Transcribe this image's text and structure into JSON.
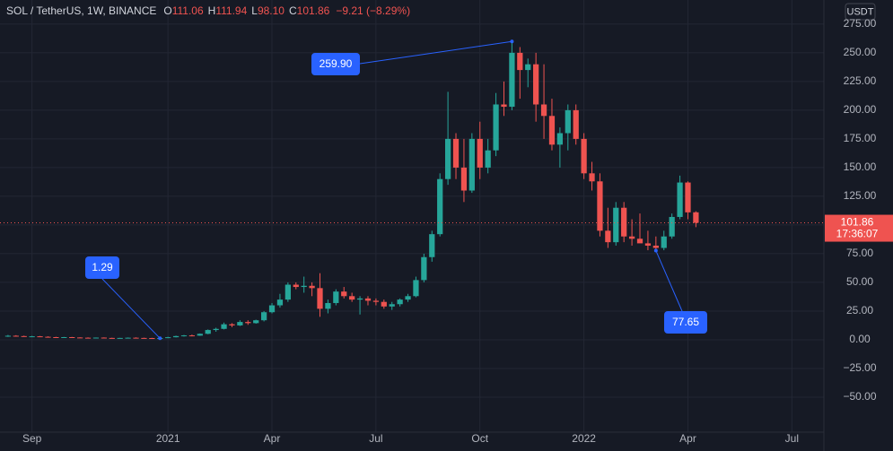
{
  "chart_data": {
    "type": "candlestick",
    "header": {
      "title": "SOL / TetherUS, 1W, BINANCE",
      "items": [
        {
          "label": "O",
          "value": "111.06"
        },
        {
          "label": "H",
          "value": "111.94"
        },
        {
          "label": "L",
          "value": "98.10"
        },
        {
          "label": "C",
          "value": "101.86"
        }
      ],
      "change": "−9.21 (−8.29%)"
    },
    "currency": "USDT",
    "up_color": "#26a69a",
    "down_color": "#ef5350",
    "grid": true,
    "open": [
      3.0,
      3.5,
      3.2,
      2.8,
      3.0,
      2.6,
      2.3,
      2.1,
      2.3,
      2.0,
      1.8,
      1.7,
      1.9,
      1.6,
      1.5,
      1.6,
      1.8,
      1.6,
      1.5,
      1.45,
      1.5,
      2.2,
      3.2,
      3.8,
      3.6,
      5.2,
      8.5,
      9.5,
      13.5,
      12.5,
      15.5,
      14.5,
      17,
      24,
      30,
      35,
      48,
      46,
      47,
      45,
      27,
      32,
      42,
      38,
      35,
      36,
      34,
      33,
      29,
      31,
      35,
      38,
      52,
      72,
      92,
      140,
      175,
      150,
      130,
      175,
      150,
      165,
      205,
      203,
      250,
      235,
      240,
      205,
      195,
      170,
      180,
      200,
      175,
      145,
      138,
      95,
      85,
      115,
      90,
      88,
      84,
      82,
      80,
      90,
      107,
      137,
      111.06
    ],
    "high": [
      4.2,
      4.0,
      3.6,
      3.4,
      3.3,
      3.0,
      2.6,
      2.5,
      2.5,
      2.2,
      2.1,
      2.0,
      2.1,
      1.8,
      1.7,
      2.0,
      2.1,
      1.8,
      1.7,
      1.7,
      2.6,
      3.6,
      4.2,
      4.5,
      5.5,
      9.0,
      10.5,
      15.0,
      14.5,
      17,
      17,
      17.5,
      25,
      32,
      40,
      50,
      50,
      55,
      50,
      58,
      35,
      44,
      46,
      41,
      38,
      38,
      36,
      35,
      33,
      36,
      40,
      55,
      75,
      95,
      145,
      216,
      180,
      175,
      180,
      190,
      175,
      215,
      225,
      259.9,
      255,
      245,
      250,
      240,
      210,
      185,
      205,
      205,
      180,
      155,
      145,
      115,
      120,
      120,
      105,
      110,
      95,
      90,
      95,
      110,
      143,
      138,
      111.94
    ],
    "low": [
      2.5,
      2.9,
      2.6,
      2.4,
      2.5,
      2.1,
      1.9,
      1.8,
      1.9,
      1.6,
      1.5,
      1.5,
      1.5,
      1.4,
      1.35,
      1.5,
      1.5,
      1.4,
      1.35,
      1.29,
      1.4,
      2.0,
      2.8,
      3.0,
      3.4,
      4.8,
      7.0,
      9.0,
      11.0,
      12,
      13,
      14,
      16,
      23,
      28,
      33,
      44,
      41,
      38,
      20,
      23,
      30,
      36,
      33,
      22,
      30,
      30,
      27,
      26,
      29,
      33,
      37,
      50,
      68,
      90,
      135,
      140,
      120,
      128,
      140,
      145,
      160,
      195,
      200,
      210,
      220,
      190,
      175,
      165,
      150,
      165,
      170,
      140,
      130,
      90,
      80,
      82,
      85,
      82,
      85,
      78,
      77.65,
      78,
      88,
      105,
      105,
      98.1
    ],
    "close": [
      3.5,
      3.2,
      2.8,
      3.0,
      2.6,
      2.3,
      2.1,
      2.3,
      2.0,
      1.8,
      1.7,
      1.9,
      1.6,
      1.5,
      1.6,
      1.8,
      1.6,
      1.5,
      1.45,
      1.5,
      2.2,
      3.2,
      3.8,
      3.6,
      5.2,
      8.5,
      9.5,
      13.5,
      12.5,
      15.5,
      14.5,
      17,
      24,
      30,
      35,
      48,
      46,
      47,
      45,
      27,
      32,
      42,
      38,
      35,
      36,
      34,
      33,
      29,
      31,
      35,
      38,
      52,
      72,
      92,
      140,
      175,
      150,
      130,
      175,
      150,
      165,
      205,
      203,
      250,
      235,
      240,
      205,
      195,
      170,
      180,
      200,
      175,
      145,
      138,
      95,
      85,
      115,
      90,
      88,
      84,
      82,
      80,
      90,
      107,
      137,
      111,
      101.86
    ],
    "xlim": [
      -1,
      102
    ],
    "xticks": [
      {
        "value": 3,
        "label": "Sep"
      },
      {
        "value": 20,
        "label": "2021"
      },
      {
        "value": 33,
        "label": "Apr"
      },
      {
        "value": 46,
        "label": "Jul"
      },
      {
        "value": 59,
        "label": "Oct"
      },
      {
        "value": 72,
        "label": "2022"
      },
      {
        "value": 85,
        "label": "Apr"
      },
      {
        "value": 98,
        "label": "Jul"
      }
    ],
    "ylim": [
      -80.5,
      296
    ],
    "yticks": [
      {
        "value": 275,
        "label": "275.00"
      },
      {
        "value": 250,
        "label": "250.00"
      },
      {
        "value": 225,
        "label": "225.00"
      },
      {
        "value": 200,
        "label": "200.00"
      },
      {
        "value": 175,
        "label": "175.00"
      },
      {
        "value": 150,
        "label": "150.00"
      },
      {
        "value": 125,
        "label": "125.00"
      },
      {
        "value": 100,
        "label": "100.00"
      },
      {
        "value": 75,
        "label": "75.00"
      },
      {
        "value": 50,
        "label": "50.00"
      },
      {
        "value": 25,
        "label": "25.00"
      },
      {
        "value": 0,
        "label": "0.00"
      },
      {
        "value": -25,
        "label": "−25.00"
      },
      {
        "value": -50,
        "label": "−50.00"
      }
    ],
    "last_price": {
      "value": 101.86,
      "label": "101.86",
      "countdown": "17:36:07"
    },
    "annotations": [
      {
        "text": "259.90",
        "x": 63,
        "y": 259.9
      },
      {
        "text": "1.29",
        "x": 19,
        "y": 1.29
      },
      {
        "text": "77.65",
        "x": 81,
        "y": 77.65
      }
    ]
  }
}
